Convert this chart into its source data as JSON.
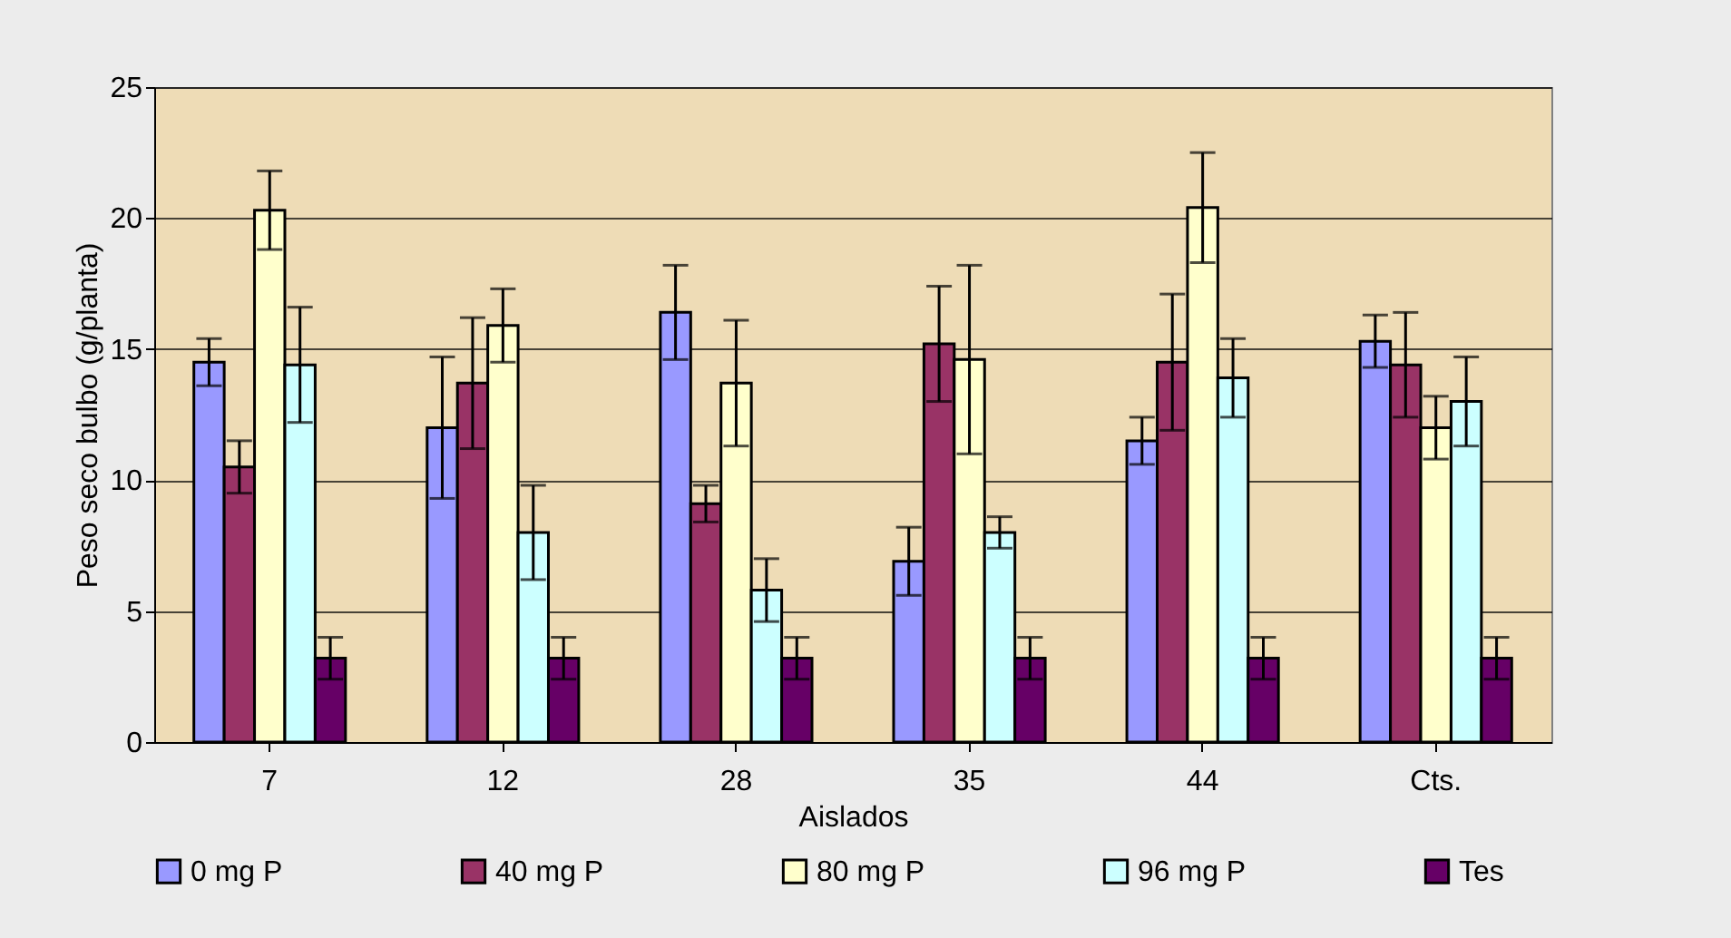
{
  "chart_data": {
    "type": "bar",
    "xlabel": "Aislados",
    "ylabel": "Peso seco bulbo (g/planta)",
    "categories": [
      "7",
      "12",
      "28",
      "35",
      "44",
      "Cts."
    ],
    "ylim": [
      0,
      25
    ],
    "yticks": [
      0,
      5,
      10,
      15,
      20,
      25
    ],
    "grid": "y",
    "legend": "bottom",
    "series": [
      {
        "name": "0 mg P",
        "color": "#9999ff",
        "values": [
          14.5,
          12.0,
          16.4,
          6.9,
          11.5,
          15.3
        ],
        "errors": [
          0.9,
          2.7,
          1.8,
          1.3,
          0.9,
          1.0
        ]
      },
      {
        "name": "40 mg P",
        "color": "#993366",
        "values": [
          10.5,
          13.7,
          9.1,
          15.2,
          14.5,
          14.4
        ],
        "errors": [
          1.0,
          2.5,
          0.7,
          2.2,
          2.6,
          2.0
        ]
      },
      {
        "name": "80 mg P",
        "color": "#ffffcc",
        "values": [
          20.3,
          15.9,
          13.7,
          14.6,
          20.4,
          12.0
        ],
        "errors": [
          1.5,
          1.4,
          2.4,
          3.6,
          2.1,
          1.2
        ]
      },
      {
        "name": "96 mg P",
        "color": "#ccffff",
        "values": [
          14.4,
          8.0,
          5.8,
          8.0,
          13.9,
          13.0
        ],
        "errors": [
          2.2,
          1.8,
          1.2,
          0.6,
          1.5,
          1.7
        ]
      },
      {
        "name": "Tes",
        "color": "#660066",
        "values": [
          3.2,
          3.2,
          3.2,
          3.2,
          3.2,
          3.2
        ],
        "errors": [
          0.8,
          0.8,
          0.8,
          0.8,
          0.8,
          0.8
        ]
      }
    ]
  }
}
